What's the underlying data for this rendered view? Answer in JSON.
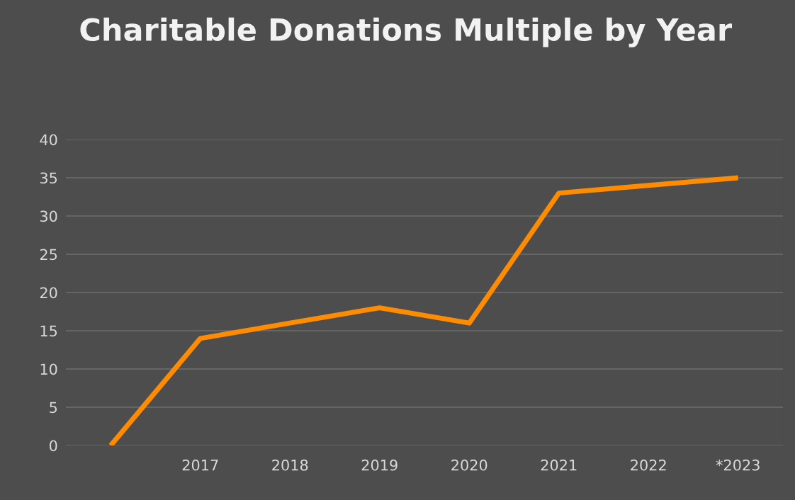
{
  "chart_data": {
    "type": "line",
    "title": "Charitable Donations Multiple by Year",
    "categories": [
      null,
      "2017",
      "2018",
      "2019",
      "2020",
      "2021",
      "2022",
      "*2023"
    ],
    "series": [
      {
        "color": "#ff8c00",
        "values": [
          0,
          14,
          16,
          18,
          16,
          33,
          34,
          35
        ]
      }
    ],
    "ylim": [
      0,
      40
    ],
    "yticks": [
      0,
      5,
      10,
      15,
      20,
      25,
      30,
      35,
      40
    ],
    "grid": "y",
    "legend": false,
    "marker": "none",
    "line_style": "solid"
  }
}
